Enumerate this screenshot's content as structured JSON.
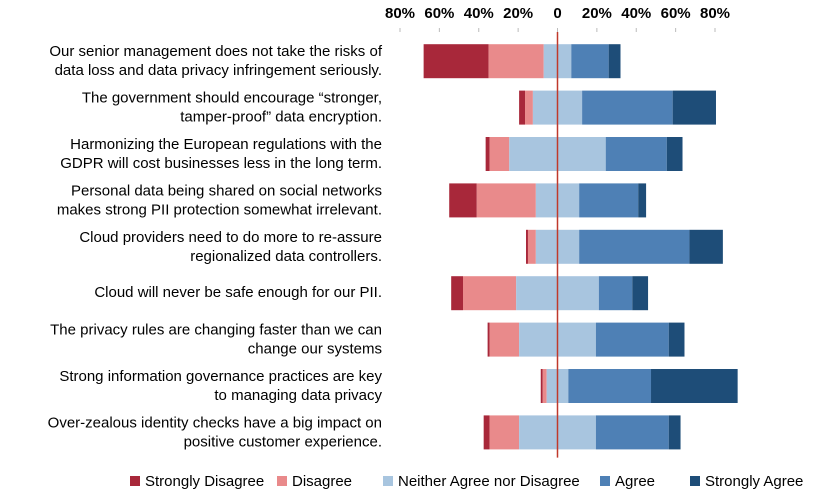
{
  "chart_data": {
    "type": "diverging-bar",
    "categories": [
      [
        "Our senior management does not take the risks of",
        "data loss and data privacy infringement seriously."
      ],
      [
        "The government should encourage “stronger,",
        "tamper-proof” data encryption."
      ],
      [
        "Harmonizing the European regulations with the",
        "GDPR will cost businesses less in the long term."
      ],
      [
        "Personal data being shared on social networks",
        "makes strong PII protection somewhat irrelevant."
      ],
      [
        "Cloud providers need to do more to re-assure",
        "regionalized data controllers."
      ],
      [
        "Cloud will never be safe enough for our PII."
      ],
      [
        "The privacy rules are changing faster than we can",
        "change our systems"
      ],
      [
        "Strong information governance practices are key",
        "to managing data privacy"
      ],
      [
        "Over-zealous identity checks have a big impact on",
        "positive customer experience."
      ]
    ],
    "series": [
      {
        "name": "Strongly Disagree",
        "color": "#a8283a",
        "values": [
          33,
          3,
          2,
          14,
          1,
          6,
          1,
          1,
          3
        ]
      },
      {
        "name": "Disagree",
        "color": "#e98a8b",
        "values": [
          28,
          4,
          10,
          30,
          4,
          27,
          15,
          2,
          15
        ]
      },
      {
        "name": "Neither Agree nor Disagree",
        "color": "#a8c5df",
        "values": [
          14,
          25,
          49,
          22,
          22,
          42,
          39,
          11,
          39
        ]
      },
      {
        "name": "Agree",
        "color": "#4e80b5",
        "values": [
          19,
          46,
          31,
          30,
          56,
          17,
          37,
          42,
          37
        ]
      },
      {
        "name": "Strongly Agree",
        "color": "#1e4d78",
        "values": [
          6,
          22,
          8,
          4,
          17,
          8,
          8,
          44,
          6
        ]
      }
    ],
    "neutral_series": 2,
    "xlim": [
      -80,
      80
    ],
    "xticks": [
      {
        "value": -80,
        "label": "80%"
      },
      {
        "value": -60,
        "label": "60%"
      },
      {
        "value": -40,
        "label": "40%"
      },
      {
        "value": -20,
        "label": "20%"
      },
      0,
      {
        "value": 20,
        "label": "20%"
      },
      {
        "value": 40,
        "label": "40%"
      },
      {
        "value": 60,
        "label": "60%"
      },
      {
        "value": 80,
        "label": "80%"
      }
    ],
    "zero_line_color": "#c0392b"
  }
}
